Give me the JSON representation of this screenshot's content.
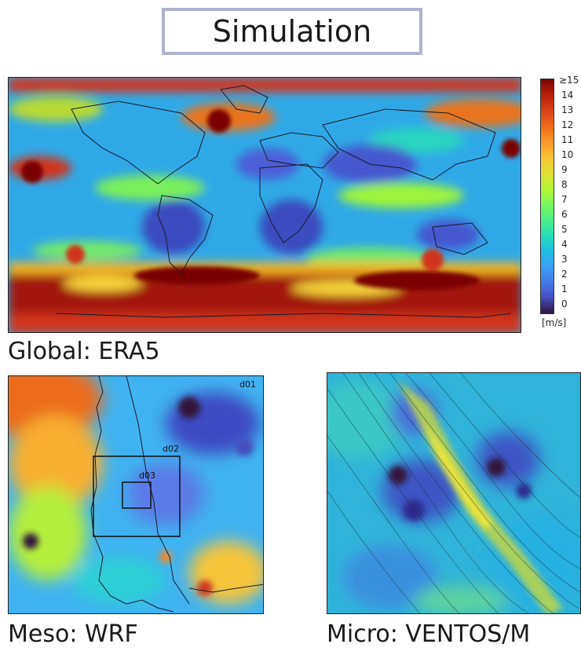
{
  "title": "Simulation",
  "panels": {
    "global": {
      "caption": "Global: ERA5"
    },
    "meso": {
      "caption": "Meso: WRF",
      "domains": [
        "d01",
        "d02",
        "d03"
      ]
    },
    "micro": {
      "caption": "Micro: VENTOS/M"
    }
  },
  "colorbar": {
    "ticks": [
      "≥15",
      "14",
      "13",
      "12",
      "11",
      "10",
      "9",
      "8",
      "7",
      "6",
      "5",
      "4",
      "3",
      "2",
      "1",
      "0"
    ],
    "unit": "[m/s]"
  },
  "colors": {
    "title_border": "#aeb2cc"
  }
}
